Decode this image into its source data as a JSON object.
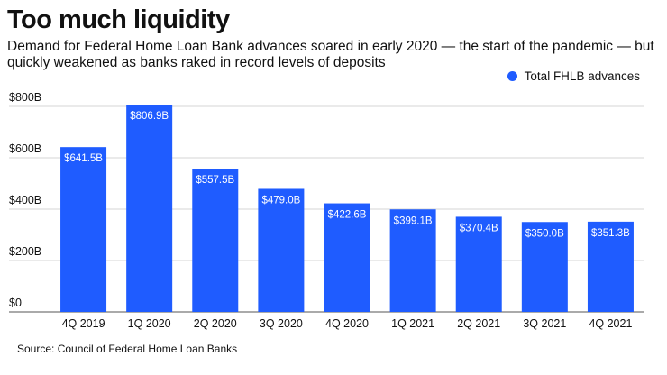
{
  "title": "Too much liquidity",
  "subtitle": "Demand for Federal Home Loan Bank advances soared in early 2020 — the start of the pandemic — but quickly weakened as banks raked in record levels of deposits",
  "source": "Source: Council of Federal Home Loan Banks",
  "colors": {
    "bar": "#1f5cff",
    "grid": "#c8c8c8",
    "axis": "#555555"
  },
  "chart_data": {
    "type": "bar",
    "categories": [
      "4Q 2019",
      "1Q 2020",
      "2Q 2020",
      "3Q 2020",
      "4Q 2020",
      "1Q 2021",
      "2Q 2021",
      "3Q 2021",
      "4Q 2021"
    ],
    "series": [
      {
        "name": "Total FHLB advances",
        "values": [
          641.5,
          806.9,
          557.5,
          479.0,
          422.6,
          399.1,
          370.4,
          350.0,
          351.3
        ],
        "labels": [
          "$641.5B",
          "$806.9B",
          "$557.5B",
          "$479.0B",
          "$422.6B",
          "$399.1B",
          "$370.4B",
          "$350.0B",
          "$351.3B"
        ]
      }
    ],
    "yticks": [
      0,
      200,
      400,
      600,
      800
    ],
    "ytick_labels": [
      "$0",
      "$200B",
      "$400B",
      "$600B",
      "$800B"
    ],
    "ylim": [
      0,
      800
    ],
    "grid": true,
    "legend_position": "top-right"
  }
}
